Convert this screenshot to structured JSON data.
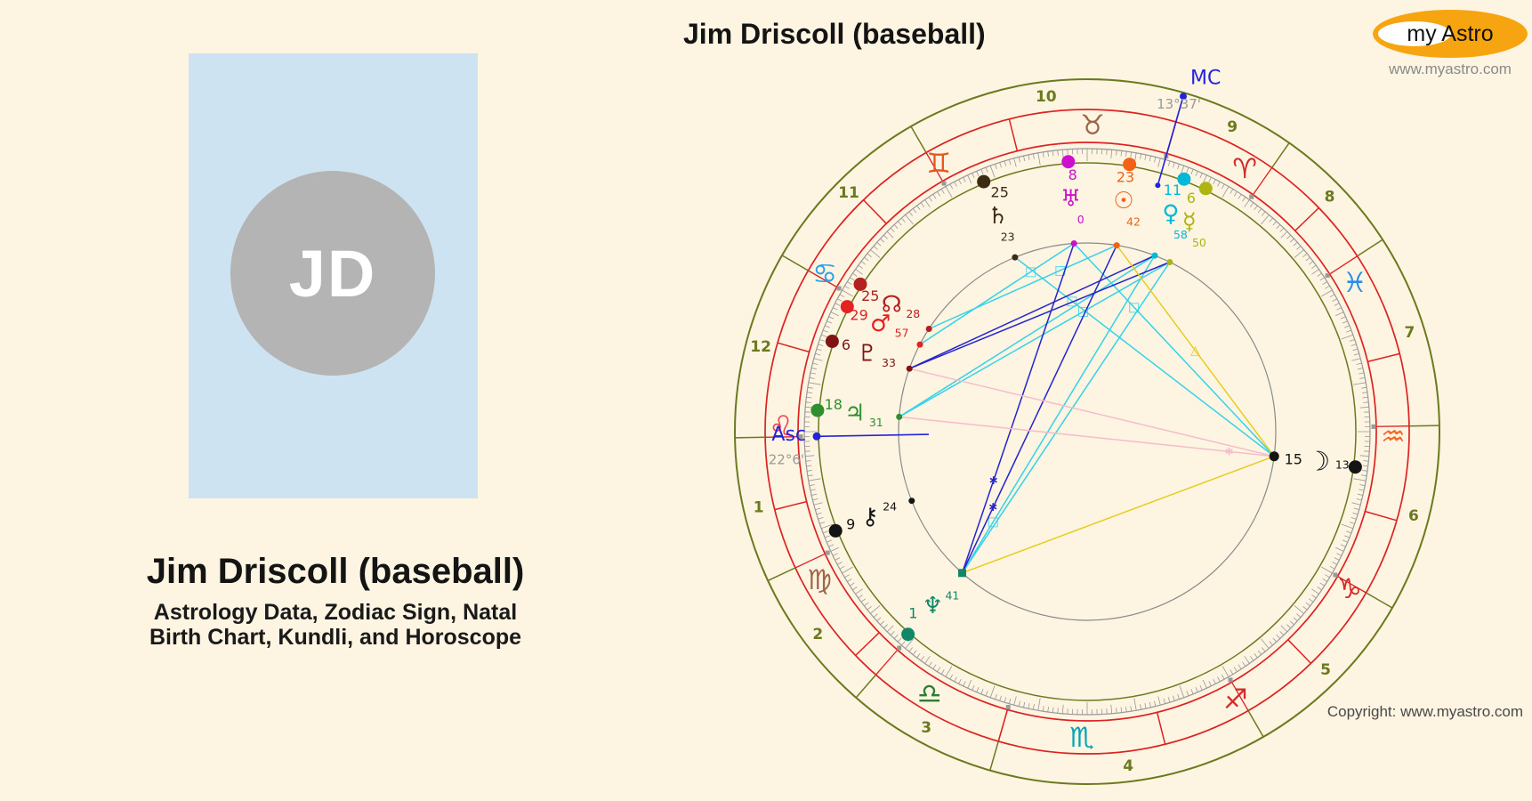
{
  "profile": {
    "initials": "JD"
  },
  "left": {
    "title": "Jim Driscoll (baseball)",
    "subtitle_line1": "Astrology Data, Zodiac Sign, Natal",
    "subtitle_line2": "Birth Chart, Kundli, and Horoscope"
  },
  "header": {
    "chart_title": "Jim Driscoll (baseball)"
  },
  "logo": {
    "text": "my Astro",
    "website": "www.myastro.com",
    "ellipse_color": "#f7a411"
  },
  "footer": {
    "copyright": "Copyright: www.myastro.com"
  },
  "chart": {
    "asc": {
      "label": "Asc",
      "degree_text": "22°6'",
      "angle": 181
    },
    "mc": {
      "label": "MC",
      "degree_text": "13°37'",
      "angle": 74
    },
    "colors": {
      "ring_olive": "#6b7a1e",
      "ring_red": "#dd2222",
      "tick_gray": "#999999",
      "aspect_circle": "#8a8a8a",
      "axis_blue": "#2323dd",
      "degree_gray": "#999999",
      "cyan": "#35d2e8",
      "blue": "#2525cc",
      "yellow": "#e6ce20",
      "pink": "#f6bccb"
    },
    "signs": [
      {
        "name": "aries",
        "glyph": "♈",
        "color": "#d42a2a",
        "angle": 59
      },
      {
        "name": "taurus",
        "glyph": "♉",
        "color": "#a0664b",
        "angle": 89
      },
      {
        "name": "gemini",
        "glyph": "♊",
        "color": "#e8561f",
        "angle": 119
      },
      {
        "name": "cancer",
        "glyph": "♋",
        "color": "#29a3e8",
        "angle": 149
      },
      {
        "name": "leo",
        "glyph": "♌",
        "color": "#ef404e",
        "angle": 179
      },
      {
        "name": "virgo",
        "glyph": "♍",
        "color": "#a0664b",
        "angle": 209
      },
      {
        "name": "libra",
        "glyph": "♎",
        "color": "#2e7d32",
        "angle": 239
      },
      {
        "name": "scorpio",
        "glyph": "♏",
        "color": "#00a4b8",
        "angle": 269
      },
      {
        "name": "sagittarius",
        "glyph": "♐",
        "color": "#d42a2a",
        "angle": 299
      },
      {
        "name": "capricorn",
        "glyph": "♑",
        "color": "#d42a2a",
        "angle": 329
      },
      {
        "name": "aquarius",
        "glyph": "♒",
        "color": "#f4682a",
        "angle": 359
      },
      {
        "name": "pisces",
        "glyph": "♓",
        "color": "#2b8fe8",
        "angle": 29
      }
    ],
    "houses": [
      {
        "number": "1",
        "angle": 193
      },
      {
        "number": "2",
        "angle": 217
      },
      {
        "number": "3",
        "angle": 241.5
      },
      {
        "number": "4",
        "angle": 277
      },
      {
        "number": "5",
        "angle": 315
      },
      {
        "number": "6",
        "angle": 345.5
      },
      {
        "number": "7",
        "angle": 17
      },
      {
        "number": "8",
        "angle": 44
      },
      {
        "number": "9",
        "angle": 64.5
      },
      {
        "number": "10",
        "angle": 97
      },
      {
        "number": "11",
        "angle": 135
      },
      {
        "number": "12",
        "angle": 165.5
      }
    ],
    "cusp_angles": [
      181,
      205,
      229,
      254,
      300,
      330,
      1,
      33,
      55,
      74,
      120,
      150
    ],
    "planets": [
      {
        "name": "sun",
        "glyph": "☉",
        "color": "#f26114",
        "deg": "23",
        "min": "42",
        "angle": 81
      },
      {
        "name": "moon",
        "glyph": "☽",
        "color": "#141414",
        "deg": "15",
        "min": "13",
        "angle": 352.5
      },
      {
        "name": "mercury",
        "glyph": "☿",
        "color": "#b0b410",
        "deg": "6",
        "min": "50",
        "angle": 64
      },
      {
        "name": "venus",
        "glyph": "♀",
        "color": "#00b8d8",
        "deg": "11",
        "min": "58",
        "angle": 69
      },
      {
        "name": "mars",
        "glyph": "♂",
        "color": "#e32222",
        "deg": "29",
        "min": "57",
        "angle": 152.5
      },
      {
        "name": "jupiter",
        "glyph": "♃",
        "color": "#2f8f2f",
        "deg": "18",
        "min": "31",
        "angle": 175.5
      },
      {
        "name": "saturn",
        "glyph": "♄",
        "color": "#3d2a12",
        "deg": "25",
        "min": "23",
        "angle": 112.5
      },
      {
        "name": "uranus",
        "glyph": "♅",
        "color": "#cc10cc",
        "deg": "8",
        "min": "0",
        "angle": 94
      },
      {
        "name": "neptune",
        "glyph": "♆",
        "color": "#108868",
        "deg": "1",
        "min": "41",
        "angle": 228.5
      },
      {
        "name": "pluto",
        "glyph": "♇",
        "color": "#801414",
        "deg": "6",
        "min": "33",
        "angle": 160.5
      },
      {
        "name": "north-node",
        "glyph": "☊",
        "color": "#b22020",
        "deg": "25",
        "min": "28",
        "angle": 147
      },
      {
        "name": "chiron",
        "glyph": "⚷",
        "color": "#141414",
        "deg": "9",
        "min": "24",
        "angle": 201.5
      }
    ],
    "aspects": [
      {
        "from": "mercury",
        "to": "jupiter",
        "color": "cyan",
        "marker": "square",
        "t": 0.32
      },
      {
        "from": "venus",
        "to": "jupiter",
        "color": "cyan",
        "marker": "",
        "t": 0
      },
      {
        "from": "sun",
        "to": "north-node",
        "color": "cyan",
        "marker": "square",
        "t": 0.3
      },
      {
        "from": "uranus",
        "to": "mars",
        "color": "cyan",
        "marker": "square",
        "t": 0.28
      },
      {
        "from": "saturn",
        "to": "moon",
        "color": "cyan",
        "marker": "square",
        "t": 0.22
      },
      {
        "from": "uranus",
        "to": "moon",
        "color": "cyan",
        "marker": "square",
        "t": 0.3
      },
      {
        "from": "venus",
        "to": "neptune",
        "color": "cyan",
        "marker": "square",
        "t": 0.84
      },
      {
        "from": "mercury",
        "to": "neptune",
        "color": "cyan",
        "marker": "",
        "t": 0
      },
      {
        "from": "sun",
        "to": "neptune",
        "color": "blue",
        "marker": "star",
        "t": 0.8
      },
      {
        "from": "uranus",
        "to": "neptune",
        "color": "blue",
        "marker": "star",
        "t": 0.72
      },
      {
        "from": "venus",
        "to": "pluto",
        "color": "blue",
        "marker": "",
        "t": 0
      },
      {
        "from": "mercury",
        "to": "pluto",
        "color": "blue",
        "marker": "",
        "t": 0
      },
      {
        "from": "moon",
        "to": "sun",
        "color": "yellow",
        "marker": "tri",
        "t": 0.5
      },
      {
        "from": "moon",
        "to": "neptune",
        "color": "yellow",
        "marker": "",
        "t": 0
      },
      {
        "from": "moon",
        "to": "jupiter",
        "color": "pink",
        "marker": "star",
        "t": 0.12
      },
      {
        "from": "moon",
        "to": "pluto",
        "color": "pink",
        "marker": "",
        "t": 0
      }
    ]
  }
}
